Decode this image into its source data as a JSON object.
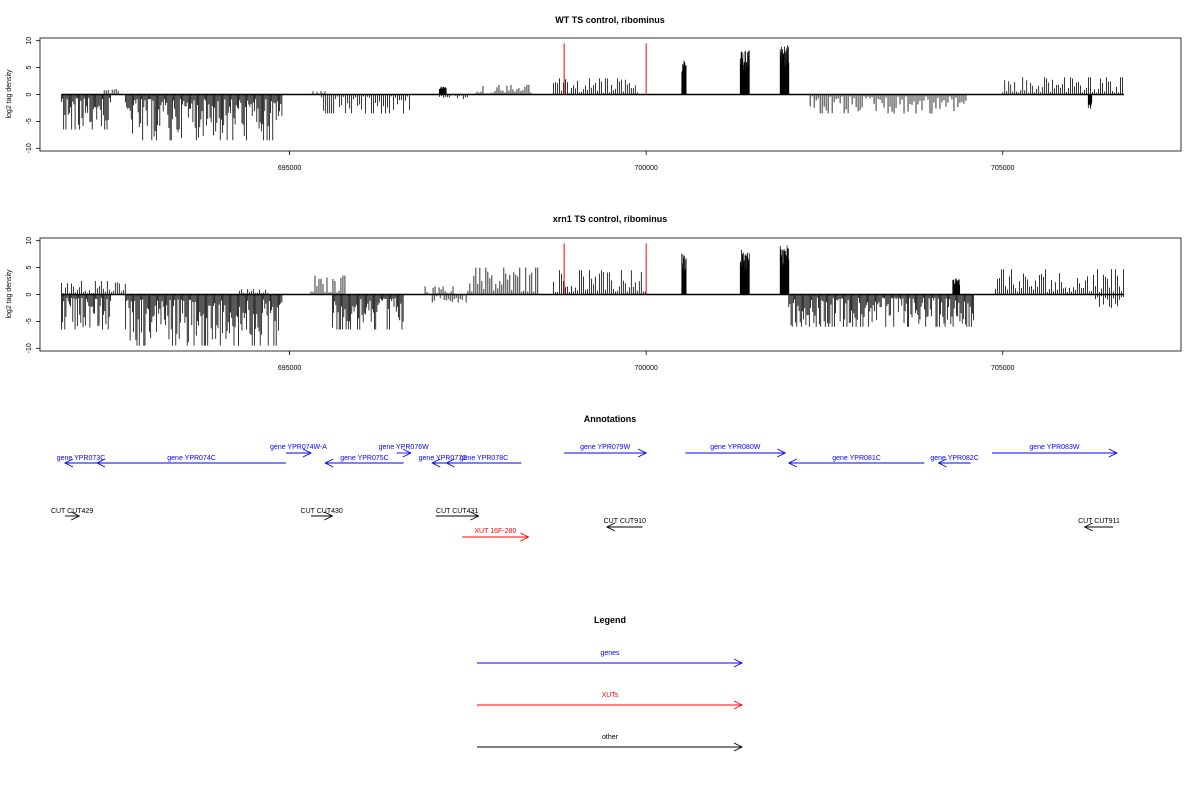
{
  "colors": {
    "axis": "#000000",
    "signal": "#000000",
    "marker": "#ff0000",
    "genes": "#0000ff",
    "xuts": "#ff0000",
    "other": "#000000"
  },
  "chart_data": [
    {
      "type": "bar",
      "title": "WT TS control, ribominus",
      "ylabel": "log2 tag density",
      "xlim": [
        691500,
        707500
      ],
      "ylim": [
        -10.5,
        10.5
      ],
      "x_ticks": [
        695000,
        700000,
        705000
      ],
      "x_tick_labels": [
        "695000",
        "700000",
        "705000"
      ],
      "y_ticks": [
        10,
        5,
        0,
        -5,
        -10
      ],
      "y_tick_labels": [
        "10",
        "5",
        "0",
        "-5",
        "-10"
      ],
      "baseline": {
        "x": [
          691800,
          706700
        ],
        "y": 0
      },
      "markers": [
        {
          "x": 698850,
          "y": 9.5
        },
        {
          "x": 700000,
          "y": 9.5
        }
      ],
      "series": [
        {
          "strand": "plus",
          "segments": [
            {
              "x_start": 692400,
              "x_end": 692600,
              "max": 1.5
            },
            {
              "x_start": 695300,
              "x_end": 695500,
              "max": 0.8
            },
            {
              "x_start": 697100,
              "x_end": 697200,
              "max": 1.5
            },
            {
              "x_start": 697600,
              "x_end": 698400,
              "max": 1.8
            },
            {
              "x_start": 698700,
              "x_end": 699900,
              "max": 3.0
            },
            {
              "x_start": 700500,
              "x_end": 700560,
              "max": 7.3
            },
            {
              "x_start": 701320,
              "x_end": 701450,
              "max": 8.2
            },
            {
              "x_start": 701880,
              "x_end": 702000,
              "max": 9.3
            },
            {
              "x_start": 705000,
              "x_end": 706700,
              "max": 3.2
            }
          ]
        },
        {
          "strand": "minus",
          "segments": [
            {
              "x_start": 691800,
              "x_end": 692500,
              "min": -6.5
            },
            {
              "x_start": 692700,
              "x_end": 694900,
              "min": -8.5
            },
            {
              "x_start": 695450,
              "x_end": 696700,
              "min": -3.5
            },
            {
              "x_start": 697100,
              "x_end": 697500,
              "min": -1.0
            },
            {
              "x_start": 702300,
              "x_end": 704500,
              "min": -3.5
            },
            {
              "x_start": 706200,
              "x_end": 706250,
              "min": -2.8
            }
          ]
        }
      ]
    },
    {
      "type": "bar",
      "title": "xrn1 TS control, ribominus",
      "ylabel": "log2 tag density",
      "xlim": [
        691500,
        707500
      ],
      "ylim": [
        -10.5,
        10.5
      ],
      "x_ticks": [
        695000,
        700000,
        705000
      ],
      "x_tick_labels": [
        "695000",
        "700000",
        "705000"
      ],
      "y_ticks": [
        10,
        5,
        0,
        -5,
        -10
      ],
      "y_tick_labels": [
        "10",
        "5",
        "0",
        "-5",
        "-10"
      ],
      "baseline": {
        "x": [
          691800,
          706700
        ],
        "y": 0
      },
      "markers": [
        {
          "x": 698850,
          "y": 9.5
        },
        {
          "x": 700000,
          "y": 9.5
        }
      ],
      "series": [
        {
          "strand": "plus",
          "segments": [
            {
              "x_start": 691800,
              "x_end": 692700,
              "max": 2.5
            },
            {
              "x_start": 694300,
              "x_end": 694700,
              "max": 1.0
            },
            {
              "x_start": 695300,
              "x_end": 695800,
              "max": 3.5
            },
            {
              "x_start": 696900,
              "x_end": 697300,
              "max": 1.5
            },
            {
              "x_start": 697500,
              "x_end": 698500,
              "max": 5.0
            },
            {
              "x_start": 698700,
              "x_end": 700000,
              "max": 4.5
            },
            {
              "x_start": 700500,
              "x_end": 700560,
              "max": 7.8
            },
            {
              "x_start": 701320,
              "x_end": 701450,
              "max": 8.3
            },
            {
              "x_start": 701880,
              "x_end": 702000,
              "max": 9.5
            },
            {
              "x_start": 704300,
              "x_end": 704400,
              "max": 3.0
            },
            {
              "x_start": 704900,
              "x_end": 706700,
              "max": 4.7
            }
          ]
        },
        {
          "strand": "minus",
          "segments": [
            {
              "x_start": 691800,
              "x_end": 692500,
              "min": -6.5
            },
            {
              "x_start": 692700,
              "x_end": 694900,
              "min": -9.5
            },
            {
              "x_start": 695600,
              "x_end": 696600,
              "min": -6.5
            },
            {
              "x_start": 697000,
              "x_end": 697500,
              "min": -1.5
            },
            {
              "x_start": 702000,
              "x_end": 704600,
              "min": -6.0
            },
            {
              "x_start": 706300,
              "x_end": 706700,
              "min": -2.5
            }
          ]
        }
      ]
    }
  ],
  "annotations": {
    "title": "Annotations",
    "features": [
      {
        "label": "gene YPR073C",
        "kind": "genes",
        "strand": "-",
        "start": 691850,
        "end": 692300,
        "row": 1
      },
      {
        "label": "gene YPR074C",
        "kind": "genes",
        "strand": "-",
        "start": 692300,
        "end": 694950,
        "row": 1
      },
      {
        "label": "gene YPR074W-A",
        "kind": "genes",
        "strand": "+",
        "start": 694950,
        "end": 695300,
        "row": 0
      },
      {
        "label": "gene YPR075C",
        "kind": "genes",
        "strand": "-",
        "start": 695500,
        "end": 696600,
        "row": 1
      },
      {
        "label": "gene YPR076W",
        "kind": "genes",
        "strand": "+",
        "start": 696500,
        "end": 696700,
        "row": 0
      },
      {
        "label": "gene YPR077C",
        "kind": "genes",
        "strand": "-",
        "start": 697000,
        "end": 697300,
        "row": 1
      },
      {
        "label": "gene YPR078C",
        "kind": "genes",
        "strand": "-",
        "start": 697200,
        "end": 698250,
        "row": 1
      },
      {
        "label": "gene YPR079W",
        "kind": "genes",
        "strand": "+",
        "start": 698850,
        "end": 700000,
        "row": 0
      },
      {
        "label": "gene YPR080W",
        "kind": "genes",
        "strand": "+",
        "start": 700550,
        "end": 701950,
        "row": 0
      },
      {
        "label": "gene YPR081C",
        "kind": "genes",
        "strand": "-",
        "start": 702000,
        "end": 703900,
        "row": 1
      },
      {
        "label": "gene YPR082C",
        "kind": "genes",
        "strand": "-",
        "start": 704100,
        "end": 704550,
        "row": 1
      },
      {
        "label": "gene YPR083W",
        "kind": "genes",
        "strand": "+",
        "start": 704850,
        "end": 706600,
        "row": 0
      },
      {
        "label": "CUT CUT429",
        "kind": "other",
        "strand": "+",
        "start": 691850,
        "end": 692050,
        "row": 2
      },
      {
        "label": "CUT CUT430",
        "kind": "other",
        "strand": "+",
        "start": 695300,
        "end": 695600,
        "row": 2
      },
      {
        "label": "CUT CUT431",
        "kind": "other",
        "strand": "+",
        "start": 697050,
        "end": 697650,
        "row": 2
      },
      {
        "label": "CUT CUT910",
        "kind": "other",
        "strand": "-",
        "start": 699450,
        "end": 699950,
        "row": 3
      },
      {
        "label": "CUT CUT911",
        "kind": "other",
        "strand": "-",
        "start": 706150,
        "end": 706550,
        "row": 3
      },
      {
        "label": "XUT 16F-280",
        "kind": "xuts",
        "strand": "+",
        "start": 697420,
        "end": 698350,
        "row": 4
      }
    ]
  },
  "legend": {
    "title": "Legend",
    "items": [
      {
        "label": "genes",
        "kind": "genes"
      },
      {
        "label": "XUTs",
        "kind": "xuts"
      },
      {
        "label": "other",
        "kind": "other"
      }
    ]
  }
}
